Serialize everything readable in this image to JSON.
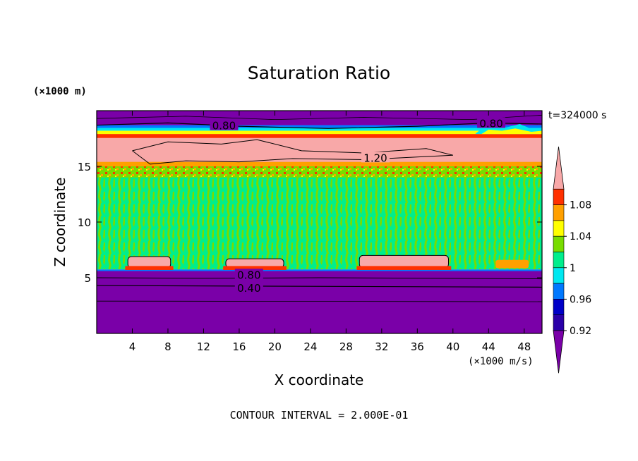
{
  "chart_data": {
    "type": "heatmap",
    "title": "Saturation Ratio",
    "xlabel": "X coordinate",
    "ylabel": "Z coordinate",
    "x_unit": "(×1000 m/s)",
    "y_unit": "(×1000 m)",
    "time_label": "t=324000 s",
    "footer": "CONTOUR INTERVAL = 2.000E-01",
    "xlim": [
      0,
      50
    ],
    "ylim": [
      0,
      20
    ],
    "x_ticks": [
      "4",
      "8",
      "12",
      "16",
      "20",
      "24",
      "28",
      "32",
      "36",
      "40",
      "44",
      "48"
    ],
    "x_tick_values": [
      4,
      8,
      12,
      16,
      20,
      24,
      28,
      32,
      36,
      40,
      44,
      48
    ],
    "y_ticks": [
      "5",
      "10",
      "15"
    ],
    "y_tick_values": [
      5,
      10,
      15
    ],
    "contour_labels": [
      {
        "text": "0.80",
        "x": 14.3,
        "z": 18.7
      },
      {
        "text": "0.80",
        "x": 44.3,
        "z": 18.9
      },
      {
        "text": "1.20",
        "x": 31.3,
        "z": 15.8
      },
      {
        "text": "0.80",
        "x": 17.1,
        "z": 5.3
      },
      {
        "text": "0.40",
        "x": 17.1,
        "z": 4.1
      }
    ],
    "colorbar": {
      "labels": [
        "1.08",
        "1.04",
        "1",
        "0.96",
        "0.92"
      ],
      "label_values": [
        1.08,
        1.04,
        1.0,
        0.96,
        0.92
      ],
      "bands": [
        {
          "lo": null,
          "hi": 0.92,
          "color": "#7a00a8"
        },
        {
          "lo": 0.92,
          "hi": 0.94,
          "color": "#2a00a8"
        },
        {
          "lo": 0.94,
          "hi": 0.96,
          "color": "#0000c8"
        },
        {
          "lo": 0.96,
          "hi": 0.98,
          "color": "#0078ff"
        },
        {
          "lo": 0.98,
          "hi": 1.0,
          "color": "#00e8f0"
        },
        {
          "lo": 1.0,
          "hi": 1.02,
          "color": "#00ee8c"
        },
        {
          "lo": 1.02,
          "hi": 1.04,
          "color": "#78dc00"
        },
        {
          "lo": 1.04,
          "hi": 1.06,
          "color": "#ffff00"
        },
        {
          "lo": 1.06,
          "hi": 1.08,
          "color": "#ffa000"
        },
        {
          "lo": 1.08,
          "hi": 1.1,
          "color": "#ff3000"
        },
        {
          "lo": 1.1,
          "hi": null,
          "color": "#f8a8a8"
        }
      ]
    },
    "regions": [
      {
        "name": "lower-stable-layer",
        "x": [
          0,
          50
        ],
        "z": [
          0,
          5.6
        ],
        "value": "<0.92"
      },
      {
        "name": "mid-cloud-layer",
        "x": [
          0,
          50
        ],
        "z": [
          5.6,
          15
        ],
        "value": "1.00-1.02"
      },
      {
        "name": "upper-supersaturated-layer",
        "x": [
          0,
          50
        ],
        "z": [
          15,
          17.8
        ],
        "value": ">1.10"
      },
      {
        "name": "top-dry-layer",
        "x": [
          0,
          50
        ],
        "z": [
          17.8,
          20
        ],
        "value": "<0.92"
      },
      {
        "name": "supersaturated-patch",
        "x": [
          3.5,
          8.3
        ],
        "z": [
          5.9,
          6.9
        ],
        "value": ">1.10"
      },
      {
        "name": "supersaturated-patch",
        "x": [
          14.5,
          21
        ],
        "z": [
          5.9,
          6.7
        ],
        "value": ">1.10"
      },
      {
        "name": "supersaturated-patch",
        "x": [
          29.5,
          39.5
        ],
        "z": [
          5.9,
          7.0
        ],
        "value": ">1.10"
      }
    ]
  }
}
